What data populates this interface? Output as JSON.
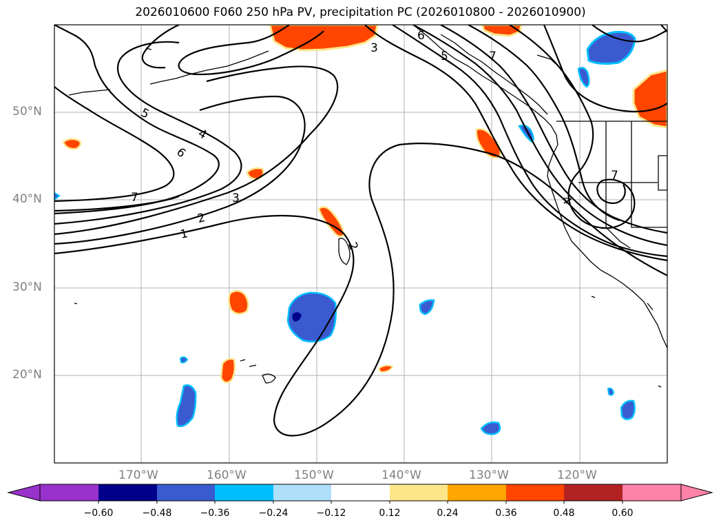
{
  "title": "2026010600 F060 250 hPa PV, precipitation PC (2026010800 - 2026010900)",
  "lat_labels": [
    "50°N",
    "40°N",
    "30°N",
    "20°N"
  ],
  "lon_labels": [
    "170°W",
    "160°W",
    "150°W",
    "140°W",
    "130°W",
    "120°W"
  ],
  "contour_labels": [
    "1",
    "2",
    "3",
    "4",
    "5",
    "6",
    "7",
    "3",
    "5",
    "6",
    "7",
    "2",
    "4",
    "7"
  ],
  "colorbar": {
    "ticks": [
      "−0.60",
      "−0.48",
      "−0.36",
      "−0.24",
      "−0.12",
      "0.12",
      "0.24",
      "0.36",
      "0.48",
      "0.60"
    ],
    "colors": [
      "#9932cc",
      "#00008b",
      "#3a5bd0",
      "#00bfff",
      "#aee0fa",
      "#ffffff",
      "#fde68a",
      "#ffa500",
      "#ff4500",
      "#b22222",
      "#ff82a8"
    ]
  }
}
